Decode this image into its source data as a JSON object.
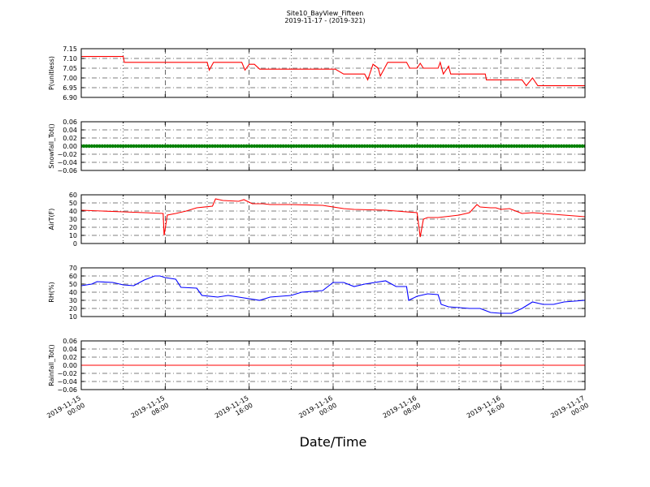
{
  "figure": {
    "title_line1": "Site10_BayView_Fifteen",
    "title_line2": "2019-11-17 - (2019-321)",
    "xlabel": "Date/Time"
  },
  "chart_data": [
    {
      "type": "line",
      "ylabel": "P(unitless)",
      "ylim": [
        6.9,
        7.15
      ],
      "yticks": [
        "6.90",
        "6.95",
        "7.00",
        "7.05",
        "7.10",
        "7.15"
      ],
      "color": "#ff0000",
      "xlim": [
        0,
        48
      ],
      "x_unit": "hours since 2019-11-15 00:00",
      "points": [
        [
          0,
          7.11
        ],
        [
          2,
          7.11
        ],
        [
          4,
          7.11
        ],
        [
          4.1,
          7.08
        ],
        [
          8,
          7.08
        ],
        [
          10,
          7.08
        ],
        [
          12,
          7.08
        ],
        [
          12.2,
          7.04
        ],
        [
          12.6,
          7.08
        ],
        [
          15.3,
          7.08
        ],
        [
          15.6,
          7.04
        ],
        [
          16,
          7.07
        ],
        [
          16.5,
          7.07
        ],
        [
          17,
          7.045
        ],
        [
          24,
          7.045
        ],
        [
          24.2,
          7.045
        ],
        [
          25,
          7.02
        ],
        [
          27,
          7.02
        ],
        [
          27.3,
          6.99
        ],
        [
          27.8,
          7.07
        ],
        [
          28.3,
          7.05
        ],
        [
          28.5,
          7.01
        ],
        [
          29.2,
          7.08
        ],
        [
          31,
          7.08
        ],
        [
          31.3,
          7.05
        ],
        [
          32,
          7.05
        ],
        [
          32.3,
          7.075
        ],
        [
          32.6,
          7.05
        ],
        [
          34,
          7.05
        ],
        [
          34.2,
          7.08
        ],
        [
          34.5,
          7.02
        ],
        [
          35,
          7.06
        ],
        [
          35.2,
          7.02
        ],
        [
          38.5,
          7.02
        ],
        [
          38.6,
          6.99
        ],
        [
          40,
          6.99
        ],
        [
          42,
          6.99
        ],
        [
          42.4,
          6.96
        ],
        [
          43,
          7.0
        ],
        [
          43.5,
          6.96
        ],
        [
          48,
          6.96
        ],
        [
          48.2,
          6.92
        ]
      ]
    },
    {
      "type": "scatter",
      "ylabel": "Snowfall_Tot()",
      "ylim": [
        -0.06,
        0.06
      ],
      "yticks": [
        "−0.06",
        "−0.04",
        "−0.02",
        "0.00",
        "0.02",
        "0.04",
        "0.06"
      ],
      "color": "#008000",
      "xlim": [
        0,
        48
      ],
      "x_unit": "hours since 2019-11-15 00:00",
      "constant_value": 0.0,
      "sample_interval_hours": 0.25
    },
    {
      "type": "line",
      "ylabel": "AirT(F)",
      "ylim": [
        0,
        60
      ],
      "yticks": [
        "0",
        "10",
        "20",
        "30",
        "40",
        "50",
        "60"
      ],
      "color": "#ff0000",
      "xlim": [
        0,
        48
      ],
      "x_unit": "hours since 2019-11-15 00:00",
      "points": [
        [
          0,
          41
        ],
        [
          2,
          40
        ],
        [
          4,
          39
        ],
        [
          6,
          38
        ],
        [
          7.8,
          37
        ],
        [
          7.9,
          10
        ],
        [
          8.2,
          35
        ],
        [
          9,
          37
        ],
        [
          10,
          40
        ],
        [
          11,
          44
        ],
        [
          12.5,
          46
        ],
        [
          12.8,
          55
        ],
        [
          13.5,
          53
        ],
        [
          15,
          52
        ],
        [
          15.5,
          54
        ],
        [
          16.3,
          49
        ],
        [
          17.3,
          49
        ],
        [
          18,
          48
        ],
        [
          20,
          48
        ],
        [
          23,
          47
        ],
        [
          25,
          43
        ],
        [
          26,
          42
        ],
        [
          29,
          41
        ],
        [
          30,
          40
        ],
        [
          32,
          38
        ],
        [
          32.3,
          8
        ],
        [
          32.6,
          30
        ],
        [
          33,
          32
        ],
        [
          34,
          32
        ],
        [
          36,
          35
        ],
        [
          37,
          38
        ],
        [
          37.7,
          48
        ],
        [
          38,
          45
        ],
        [
          39,
          44
        ],
        [
          39.5,
          44
        ],
        [
          40,
          42
        ],
        [
          40.8,
          43
        ],
        [
          42,
          37
        ],
        [
          43,
          38
        ],
        [
          48,
          33
        ]
      ]
    },
    {
      "type": "line",
      "ylabel": "RH(%)",
      "ylim": [
        10,
        70
      ],
      "yticks": [
        "10",
        "20",
        "30",
        "40",
        "50",
        "60",
        "70"
      ],
      "color": "#0000ff",
      "xlim": [
        0,
        48
      ],
      "x_unit": "hours since 2019-11-15 00:00",
      "points": [
        [
          0,
          48
        ],
        [
          1,
          50
        ],
        [
          1.5,
          53
        ],
        [
          3,
          52
        ],
        [
          4,
          49
        ],
        [
          5,
          48
        ],
        [
          6,
          55
        ],
        [
          7,
          60
        ],
        [
          7.5,
          60
        ],
        [
          8,
          58
        ],
        [
          9,
          56
        ],
        [
          9.5,
          46
        ],
        [
          11,
          45
        ],
        [
          11.5,
          36
        ],
        [
          13,
          34
        ],
        [
          14,
          36
        ],
        [
          15,
          34
        ],
        [
          17,
          30
        ],
        [
          18,
          34
        ],
        [
          20,
          36
        ],
        [
          21,
          40
        ],
        [
          23,
          42
        ],
        [
          24,
          52
        ],
        [
          25,
          52
        ],
        [
          26,
          47
        ],
        [
          27,
          50
        ],
        [
          29,
          54
        ],
        [
          30,
          47
        ],
        [
          31,
          47
        ],
        [
          31.2,
          30
        ],
        [
          32,
          35
        ],
        [
          33,
          38
        ],
        [
          34,
          37
        ],
        [
          34.3,
          25
        ],
        [
          35,
          22
        ],
        [
          36,
          21
        ],
        [
          37,
          20
        ],
        [
          38,
          20
        ],
        [
          39,
          15
        ],
        [
          40,
          14
        ],
        [
          41,
          14
        ],
        [
          42,
          20
        ],
        [
          43,
          28
        ],
        [
          44,
          25
        ],
        [
          45,
          25
        ],
        [
          46,
          28
        ],
        [
          48,
          30
        ]
      ]
    },
    {
      "type": "line",
      "ylabel": "Rainfall_Tot()",
      "ylim": [
        -0.06,
        0.06
      ],
      "yticks": [
        "−0.06",
        "−0.04",
        "−0.02",
        "0.00",
        "0.02",
        "0.04",
        "0.06"
      ],
      "color": "#ff0000",
      "xlim": [
        0,
        48
      ],
      "x_unit": "hours since 2019-11-15 00:00",
      "points": [
        [
          0,
          0.0
        ],
        [
          48,
          0.0
        ]
      ]
    }
  ],
  "xticks": [
    {
      "hour": 0,
      "line1": "2019-11-15",
      "line2": "00:00"
    },
    {
      "hour": 8,
      "line1": "2019-11-15",
      "line2": "08:00"
    },
    {
      "hour": 16,
      "line1": "2019-11-15",
      "line2": "16:00"
    },
    {
      "hour": 24,
      "line1": "2019-11-16",
      "line2": "00:00"
    },
    {
      "hour": 32,
      "line1": "2019-11-16",
      "line2": "08:00"
    },
    {
      "hour": 40,
      "line1": "2019-11-16",
      "line2": "16:00"
    },
    {
      "hour": 48,
      "line1": "2019-11-17",
      "line2": "00:00"
    }
  ]
}
